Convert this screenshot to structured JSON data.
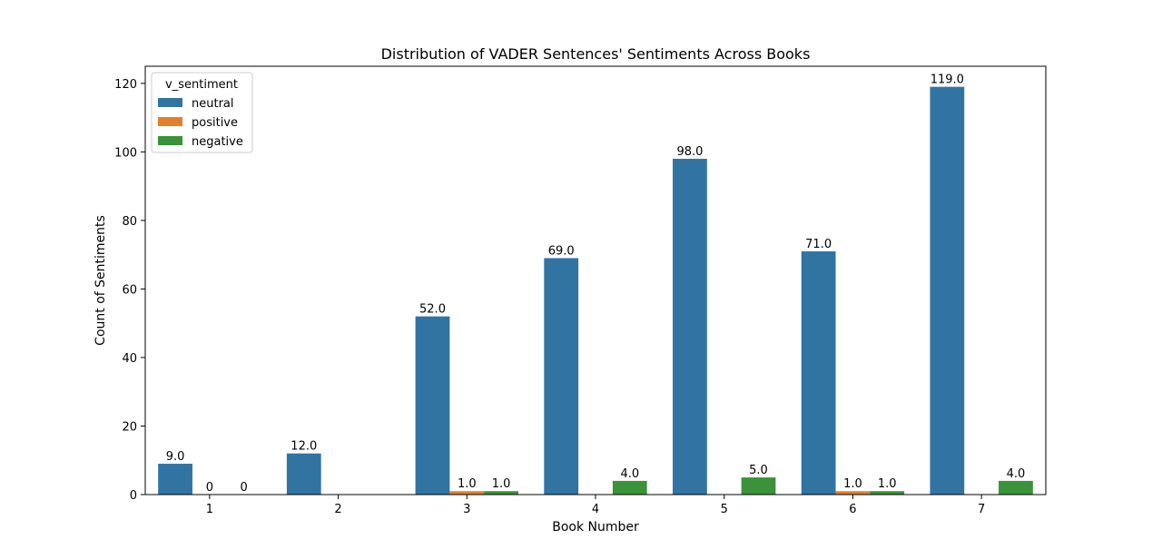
{
  "chart_data": {
    "type": "bar",
    "title": "Distribution of VADER Sentences' Sentiments Across Books",
    "xlabel": "Book Number",
    "ylabel": "Count of Sentiments",
    "categories": [
      "1",
      "2",
      "3",
      "4",
      "5",
      "6",
      "7"
    ],
    "ylim": [
      0,
      125
    ],
    "yticks": [
      0,
      20,
      40,
      60,
      80,
      100,
      120
    ],
    "grid": false,
    "legend": {
      "title": "v_sentiment",
      "placement": "top-left"
    },
    "series": [
      {
        "name": "neutral",
        "color": "#3274a1",
        "values": [
          9,
          12,
          52,
          69,
          98,
          71,
          119
        ],
        "labels": [
          "9.0",
          "12.0",
          "52.0",
          "69.0",
          "98.0",
          "71.0",
          "119.0"
        ]
      },
      {
        "name": "positive",
        "color": "#e1812c",
        "values": [
          0,
          null,
          1,
          null,
          null,
          1,
          null
        ],
        "labels": [
          "0",
          null,
          "1.0",
          null,
          null,
          "1.0",
          null
        ]
      },
      {
        "name": "negative",
        "color": "#3a923a",
        "values": [
          0,
          null,
          1,
          4,
          5,
          1,
          4
        ],
        "labels": [
          "0",
          null,
          "1.0",
          "4.0",
          "5.0",
          "1.0",
          "4.0"
        ]
      }
    ]
  }
}
